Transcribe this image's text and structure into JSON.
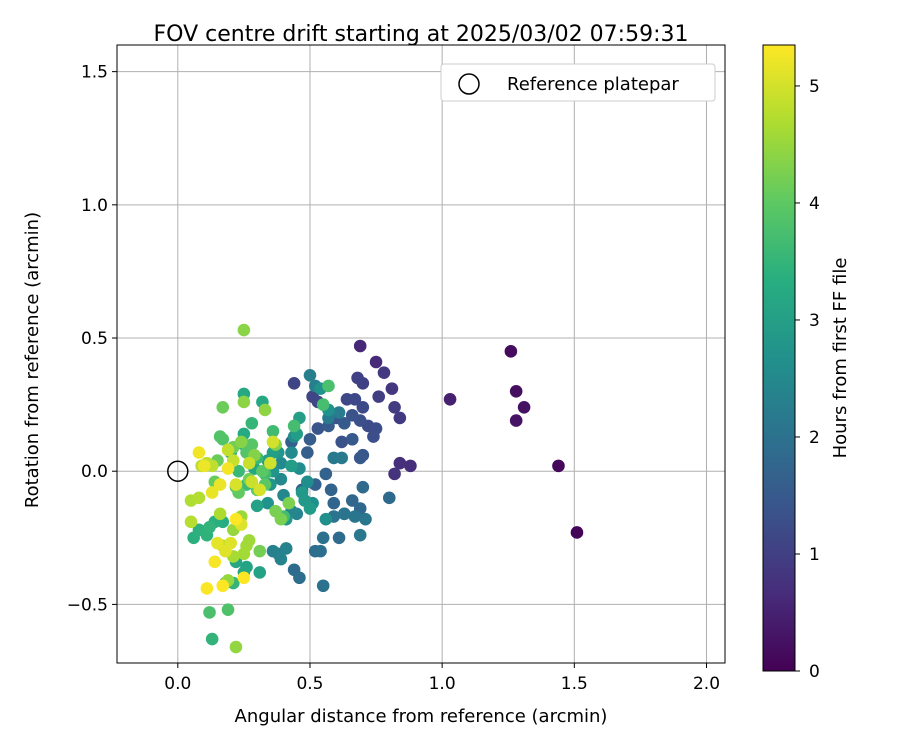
{
  "chart_data": {
    "type": "scatter",
    "title": "FOV centre drift starting at 2025/03/02 07:59:31",
    "xlabel": "Angular distance from reference (arcmin)",
    "ylabel": "Rotation from reference (arcmin)",
    "xlim": [
      -0.23,
      2.07
    ],
    "ylim": [
      -0.72,
      1.6
    ],
    "xticks": [
      0.0,
      0.5,
      1.0,
      1.5,
      2.0
    ],
    "xtick_labels": [
      "0.0",
      "0.5",
      "1.0",
      "1.5",
      "2.0"
    ],
    "yticks": [
      -0.5,
      0.0,
      0.5,
      1.0,
      1.5
    ],
    "ytick_labels": [
      "−0.5",
      "0.0",
      "0.5",
      "1.0",
      "1.5"
    ],
    "grid": true,
    "legend": {
      "position": "top-right",
      "label": "Reference platepar"
    },
    "reference_point": {
      "x": 0.0,
      "y": 0.0
    },
    "colorbar": {
      "label": "Hours from first FF file",
      "colormap": "viridis",
      "range": [
        0,
        5.35
      ],
      "ticks": [
        0,
        1,
        2,
        3,
        4,
        5
      ],
      "tick_labels": [
        "0",
        "1",
        "2",
        "3",
        "4",
        "5"
      ]
    },
    "points": [
      {
        "x": 1.51,
        "y": -0.23,
        "c": 0.05
      },
      {
        "x": 1.44,
        "y": 0.02,
        "c": 0.1
      },
      {
        "x": 1.26,
        "y": 0.45,
        "c": 0.15
      },
      {
        "x": 1.28,
        "y": 0.3,
        "c": 0.2
      },
      {
        "x": 1.31,
        "y": 0.24,
        "c": 0.25
      },
      {
        "x": 1.28,
        "y": 0.19,
        "c": 0.3
      },
      {
        "x": 1.03,
        "y": 0.27,
        "c": 0.5
      },
      {
        "x": 0.69,
        "y": 0.47,
        "c": 0.6
      },
      {
        "x": 0.75,
        "y": 0.41,
        "c": 0.65
      },
      {
        "x": 0.88,
        "y": 0.02,
        "c": 0.7
      },
      {
        "x": 0.84,
        "y": 0.03,
        "c": 0.75
      },
      {
        "x": 0.82,
        "y": -0.01,
        "c": 0.8
      },
      {
        "x": 0.81,
        "y": 0.31,
        "c": 0.85
      },
      {
        "x": 0.78,
        "y": 0.37,
        "c": 0.9
      },
      {
        "x": 0.84,
        "y": 0.2,
        "c": 0.92
      },
      {
        "x": 0.82,
        "y": 0.24,
        "c": 0.95
      },
      {
        "x": 0.76,
        "y": 0.28,
        "c": 1.0
      },
      {
        "x": 0.7,
        "y": 0.33,
        "c": 1.02
      },
      {
        "x": 0.68,
        "y": 0.35,
        "c": 1.05
      },
      {
        "x": 0.44,
        "y": 0.33,
        "c": 1.1
      },
      {
        "x": 0.51,
        "y": 0.28,
        "c": 1.12
      },
      {
        "x": 0.53,
        "y": 0.26,
        "c": 1.15
      },
      {
        "x": 0.64,
        "y": 0.27,
        "c": 1.18
      },
      {
        "x": 0.67,
        "y": 0.27,
        "c": 1.2
      },
      {
        "x": 0.7,
        "y": 0.24,
        "c": 1.22
      },
      {
        "x": 0.72,
        "y": 0.17,
        "c": 1.25
      },
      {
        "x": 0.75,
        "y": 0.16,
        "c": 1.28
      },
      {
        "x": 0.74,
        "y": 0.13,
        "c": 1.3
      },
      {
        "x": 0.69,
        "y": 0.19,
        "c": 1.32
      },
      {
        "x": 0.66,
        "y": 0.21,
        "c": 1.35
      },
      {
        "x": 0.62,
        "y": 0.11,
        "c": 1.38
      },
      {
        "x": 0.6,
        "y": 0.2,
        "c": 1.4
      },
      {
        "x": 0.53,
        "y": 0.16,
        "c": 1.42
      },
      {
        "x": 0.7,
        "y": 0.06,
        "c": 1.45
      },
      {
        "x": 0.69,
        "y": 0.05,
        "c": 1.48
      },
      {
        "x": 0.66,
        "y": 0.12,
        "c": 1.5
      },
      {
        "x": 0.63,
        "y": 0.18,
        "c": 1.52
      },
      {
        "x": 0.57,
        "y": 0.17,
        "c": 1.55
      },
      {
        "x": 0.5,
        "y": 0.12,
        "c": 1.58
      },
      {
        "x": 0.49,
        "y": 0.07,
        "c": 1.6
      },
      {
        "x": 0.43,
        "y": 0.11,
        "c": 1.62
      },
      {
        "x": 0.47,
        "y": -0.07,
        "c": 1.65
      },
      {
        "x": 0.52,
        "y": -0.05,
        "c": 1.68
      },
      {
        "x": 0.56,
        "y": -0.01,
        "c": 1.7
      },
      {
        "x": 0.58,
        "y": -0.07,
        "c": 1.72
      },
      {
        "x": 0.59,
        "y": -0.12,
        "c": 1.75
      },
      {
        "x": 0.63,
        "y": -0.16,
        "c": 1.78
      },
      {
        "x": 0.66,
        "y": -0.11,
        "c": 1.8
      },
      {
        "x": 0.69,
        "y": -0.14,
        "c": 1.82
      },
      {
        "x": 0.7,
        "y": -0.06,
        "c": 1.85
      },
      {
        "x": 0.8,
        "y": -0.1,
        "c": 1.86
      },
      {
        "x": 0.61,
        "y": -0.25,
        "c": 1.88
      },
      {
        "x": 0.44,
        "y": -0.37,
        "c": 1.9
      },
      {
        "x": 0.46,
        "y": -0.4,
        "c": 1.92
      },
      {
        "x": 0.52,
        "y": -0.3,
        "c": 1.95
      },
      {
        "x": 0.54,
        "y": -0.3,
        "c": 1.97
      },
      {
        "x": 0.55,
        "y": -0.43,
        "c": 2.0
      },
      {
        "x": 0.55,
        "y": -0.25,
        "c": 2.02
      },
      {
        "x": 0.59,
        "y": -0.17,
        "c": 2.05
      },
      {
        "x": 0.63,
        "y": -0.16,
        "c": 2.08
      },
      {
        "x": 0.67,
        "y": -0.17,
        "c": 2.1
      },
      {
        "x": 0.71,
        "y": -0.18,
        "c": 2.12
      },
      {
        "x": 0.69,
        "y": -0.24,
        "c": 2.15
      },
      {
        "x": 0.59,
        "y": 0.05,
        "c": 2.18
      },
      {
        "x": 0.62,
        "y": 0.05,
        "c": 2.2
      },
      {
        "x": 0.57,
        "y": 0.2,
        "c": 2.22
      },
      {
        "x": 0.61,
        "y": 0.22,
        "c": 2.25
      },
      {
        "x": 0.52,
        "y": 0.32,
        "c": 2.28
      },
      {
        "x": 0.5,
        "y": 0.36,
        "c": 2.3
      },
      {
        "x": 0.36,
        "y": -0.3,
        "c": 2.32
      },
      {
        "x": 0.38,
        "y": -0.31,
        "c": 2.35
      },
      {
        "x": 0.39,
        "y": -0.33,
        "c": 2.38
      },
      {
        "x": 0.41,
        "y": -0.29,
        "c": 2.4
      },
      {
        "x": 0.45,
        "y": -0.16,
        "c": 2.42
      },
      {
        "x": 0.43,
        "y": -0.15,
        "c": 2.45
      },
      {
        "x": 0.4,
        "y": -0.09,
        "c": 2.48
      },
      {
        "x": 0.39,
        "y": -0.03,
        "c": 2.5
      },
      {
        "x": 0.39,
        "y": 0.03,
        "c": 2.52
      },
      {
        "x": 0.43,
        "y": 0.07,
        "c": 2.55
      },
      {
        "x": 0.44,
        "y": 0.13,
        "c": 2.58
      },
      {
        "x": 0.46,
        "y": 0.01,
        "c": 2.6
      },
      {
        "x": 0.49,
        "y": -0.04,
        "c": 2.62
      },
      {
        "x": 0.51,
        "y": -0.12,
        "c": 2.65
      },
      {
        "x": 0.56,
        "y": -0.18,
        "c": 2.68
      },
      {
        "x": 0.57,
        "y": 0.23,
        "c": 2.7
      },
      {
        "x": 0.54,
        "y": 0.31,
        "c": 2.72
      },
      {
        "x": 0.34,
        "y": -0.12,
        "c": 2.75
      },
      {
        "x": 0.35,
        "y": -0.05,
        "c": 2.78
      },
      {
        "x": 0.36,
        "y": 0.0,
        "c": 2.8
      },
      {
        "x": 0.38,
        "y": 0.07,
        "c": 2.82
      },
      {
        "x": 0.41,
        "y": -0.18,
        "c": 2.85
      },
      {
        "x": 0.47,
        "y": -0.08,
        "c": 2.88
      },
      {
        "x": 0.48,
        "y": -0.11,
        "c": 2.9
      },
      {
        "x": 0.5,
        "y": -0.14,
        "c": 2.92
      },
      {
        "x": 0.43,
        "y": 0.02,
        "c": 2.95
      },
      {
        "x": 0.45,
        "y": 0.14,
        "c": 2.98
      },
      {
        "x": 0.46,
        "y": 0.2,
        "c": 3.0
      },
      {
        "x": 0.36,
        "y": 0.07,
        "c": 3.02
      },
      {
        "x": 0.34,
        "y": 0.04,
        "c": 3.05
      },
      {
        "x": 0.3,
        "y": -0.13,
        "c": 3.08
      },
      {
        "x": 0.31,
        "y": -0.38,
        "c": 3.1
      },
      {
        "x": 0.26,
        "y": -0.36,
        "c": 3.12
      },
      {
        "x": 0.25,
        "y": -0.38,
        "c": 3.15
      },
      {
        "x": 0.22,
        "y": -0.34,
        "c": 3.18
      },
      {
        "x": 0.29,
        "y": 0.01,
        "c": 3.2
      },
      {
        "x": 0.32,
        "y": 0.26,
        "c": 3.22
      },
      {
        "x": 0.25,
        "y": 0.29,
        "c": 3.25
      },
      {
        "x": 0.25,
        "y": 0.14,
        "c": 3.28
      },
      {
        "x": 0.25,
        "y": 0.1,
        "c": 3.3
      },
      {
        "x": 0.2,
        "y": 0.07,
        "c": 3.32
      },
      {
        "x": 0.17,
        "y": -0.19,
        "c": 3.35
      },
      {
        "x": 0.14,
        "y": -0.19,
        "c": 3.38
      },
      {
        "x": 0.06,
        "y": -0.25,
        "c": 3.4
      },
      {
        "x": 0.08,
        "y": -0.22,
        "c": 3.42
      },
      {
        "x": 0.11,
        "y": -0.24,
        "c": 3.45
      },
      {
        "x": 0.12,
        "y": -0.21,
        "c": 3.48
      },
      {
        "x": 0.13,
        "y": -0.63,
        "c": 3.5
      },
      {
        "x": 0.21,
        "y": -0.42,
        "c": 3.52
      },
      {
        "x": 0.28,
        "y": 0.18,
        "c": 3.55
      },
      {
        "x": 0.3,
        "y": 0.05,
        "c": 3.58
      },
      {
        "x": 0.23,
        "y": 0.0,
        "c": 3.6
      },
      {
        "x": 0.26,
        "y": -0.05,
        "c": 3.62
      },
      {
        "x": 0.33,
        "y": -0.01,
        "c": 3.65
      },
      {
        "x": 0.36,
        "y": 0.15,
        "c": 3.68
      },
      {
        "x": 0.4,
        "y": -0.17,
        "c": 3.7
      },
      {
        "x": 0.44,
        "y": 0.17,
        "c": 3.72
      },
      {
        "x": 0.55,
        "y": 0.25,
        "c": 3.75
      },
      {
        "x": 0.57,
        "y": 0.32,
        "c": 3.78
      },
      {
        "x": 0.12,
        "y": -0.53,
        "c": 3.8
      },
      {
        "x": 0.18,
        "y": -0.42,
        "c": 3.82
      },
      {
        "x": 0.19,
        "y": -0.52,
        "c": 3.85
      },
      {
        "x": 0.17,
        "y": 0.12,
        "c": 3.88
      },
      {
        "x": 0.16,
        "y": 0.13,
        "c": 3.9
      },
      {
        "x": 0.26,
        "y": 0.07,
        "c": 3.92
      },
      {
        "x": 0.28,
        "y": 0.1,
        "c": 3.95
      },
      {
        "x": 0.32,
        "y": 0.0,
        "c": 3.98
      },
      {
        "x": 0.33,
        "y": -0.05,
        "c": 4.0
      },
      {
        "x": 0.3,
        "y": -0.07,
        "c": 4.02
      },
      {
        "x": 0.23,
        "y": -0.08,
        "c": 4.05
      },
      {
        "x": 0.22,
        "y": -0.06,
        "c": 4.08
      },
      {
        "x": 0.14,
        "y": -0.04,
        "c": 4.1
      },
      {
        "x": 0.15,
        "y": 0.04,
        "c": 4.12
      },
      {
        "x": 0.17,
        "y": 0.24,
        "c": 4.15
      },
      {
        "x": 0.21,
        "y": 0.09,
        "c": 4.18
      },
      {
        "x": 0.27,
        "y": -0.03,
        "c": 4.2
      },
      {
        "x": 0.31,
        "y": -0.3,
        "c": 4.22
      },
      {
        "x": 0.37,
        "y": -0.15,
        "c": 4.25
      },
      {
        "x": 0.39,
        "y": -0.18,
        "c": 4.28
      },
      {
        "x": 0.42,
        "y": -0.12,
        "c": 4.3
      },
      {
        "x": 0.37,
        "y": 0.1,
        "c": 4.32
      },
      {
        "x": 0.29,
        "y": 0.06,
        "c": 4.35
      },
      {
        "x": 0.24,
        "y": 0.11,
        "c": 4.38
      },
      {
        "x": 0.25,
        "y": 0.53,
        "c": 4.4
      },
      {
        "x": 0.25,
        "y": 0.26,
        "c": 4.42
      },
      {
        "x": 0.33,
        "y": 0.23,
        "c": 4.45
      },
      {
        "x": 0.22,
        "y": -0.66,
        "c": 4.48
      },
      {
        "x": 0.19,
        "y": -0.41,
        "c": 4.5
      },
      {
        "x": 0.21,
        "y": -0.22,
        "c": 4.52
      },
      {
        "x": 0.24,
        "y": -0.17,
        "c": 4.55
      },
      {
        "x": 0.27,
        "y": -0.26,
        "c": 4.58
      },
      {
        "x": 0.26,
        "y": -0.28,
        "c": 4.6
      },
      {
        "x": 0.25,
        "y": -0.31,
        "c": 4.62
      },
      {
        "x": 0.21,
        "y": -0.32,
        "c": 4.65
      },
      {
        "x": 0.17,
        "y": -0.28,
        "c": 4.68
      },
      {
        "x": 0.16,
        "y": -0.16,
        "c": 4.7
      },
      {
        "x": 0.05,
        "y": -0.11,
        "c": 4.72
      },
      {
        "x": 0.08,
        "y": -0.1,
        "c": 4.75
      },
      {
        "x": 0.05,
        "y": -0.19,
        "c": 4.78
      },
      {
        "x": 0.09,
        "y": 0.02,
        "c": 4.8
      },
      {
        "x": 0.11,
        "y": 0.03,
        "c": 4.82
      },
      {
        "x": 0.13,
        "y": 0.02,
        "c": 4.85
      },
      {
        "x": 0.19,
        "y": 0.08,
        "c": 4.88
      },
      {
        "x": 0.21,
        "y": 0.04,
        "c": 4.9
      },
      {
        "x": 0.27,
        "y": 0.03,
        "c": 4.92
      },
      {
        "x": 0.28,
        "y": -0.04,
        "c": 4.95
      },
      {
        "x": 0.35,
        "y": 0.03,
        "c": 4.98
      },
      {
        "x": 0.36,
        "y": 0.11,
        "c": 5.0
      },
      {
        "x": 0.31,
        "y": -0.07,
        "c": 5.02
      },
      {
        "x": 0.22,
        "y": -0.05,
        "c": 5.05
      },
      {
        "x": 0.24,
        "y": -0.2,
        "c": 5.08
      },
      {
        "x": 0.2,
        "y": -0.27,
        "c": 5.1
      },
      {
        "x": 0.18,
        "y": -0.3,
        "c": 5.12
      },
      {
        "x": 0.15,
        "y": -0.27,
        "c": 5.15
      },
      {
        "x": 0.13,
        "y": -0.08,
        "c": 5.18
      },
      {
        "x": 0.16,
        "y": -0.05,
        "c": 5.2
      },
      {
        "x": 0.1,
        "y": 0.02,
        "c": 5.22
      },
      {
        "x": 0.08,
        "y": 0.07,
        "c": 5.25
      },
      {
        "x": 0.19,
        "y": 0.01,
        "c": 5.28
      },
      {
        "x": 0.14,
        "y": -0.34,
        "c": 5.3
      },
      {
        "x": 0.11,
        "y": -0.44,
        "c": 5.32
      },
      {
        "x": 0.17,
        "y": -0.43,
        "c": 5.34
      },
      {
        "x": 0.25,
        "y": -0.4,
        "c": 5.35
      },
      {
        "x": 0.22,
        "y": -0.18,
        "c": 5.35
      }
    ]
  }
}
